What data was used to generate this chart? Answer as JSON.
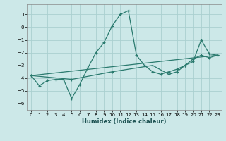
{
  "xlabel": "Humidex (Indice chaleur)",
  "ylabel": "",
  "bg_color": "#cce8e8",
  "grid_color": "#aad0d0",
  "line_color": "#2a7a6e",
  "xlim": [
    -0.5,
    23.5
  ],
  "ylim": [
    -6.5,
    1.8
  ],
  "xticks": [
    0,
    1,
    2,
    3,
    4,
    5,
    6,
    7,
    8,
    9,
    10,
    11,
    12,
    13,
    14,
    15,
    16,
    17,
    18,
    19,
    20,
    21,
    22,
    23
  ],
  "yticks": [
    -6,
    -5,
    -4,
    -3,
    -2,
    -1,
    0,
    1
  ],
  "series1_x": [
    0,
    1,
    2,
    3,
    4,
    5,
    6,
    7,
    8,
    9,
    10,
    11,
    12,
    13,
    14,
    15,
    16,
    17,
    18,
    19,
    20,
    21,
    22,
    23
  ],
  "series1_y": [
    -3.8,
    -4.6,
    -4.2,
    -4.1,
    -4.1,
    -5.6,
    -4.5,
    -3.2,
    -2.0,
    -1.2,
    0.1,
    1.0,
    1.3,
    -2.2,
    -3.0,
    -3.5,
    -3.7,
    -3.5,
    -3.3,
    -3.0,
    -2.7,
    -1.0,
    -2.1,
    -2.2
  ],
  "series2_x": [
    0,
    23
  ],
  "series2_y": [
    -3.8,
    -2.2
  ],
  "series3_x": [
    0,
    5,
    10,
    15,
    17,
    18,
    19,
    20,
    21,
    22,
    23
  ],
  "series3_y": [
    -3.8,
    -4.1,
    -3.5,
    -3.0,
    -3.7,
    -3.5,
    -3.0,
    -2.5,
    -2.2,
    -2.4,
    -2.2
  ],
  "xlabel_fontsize": 6.0,
  "tick_fontsize": 5.0
}
